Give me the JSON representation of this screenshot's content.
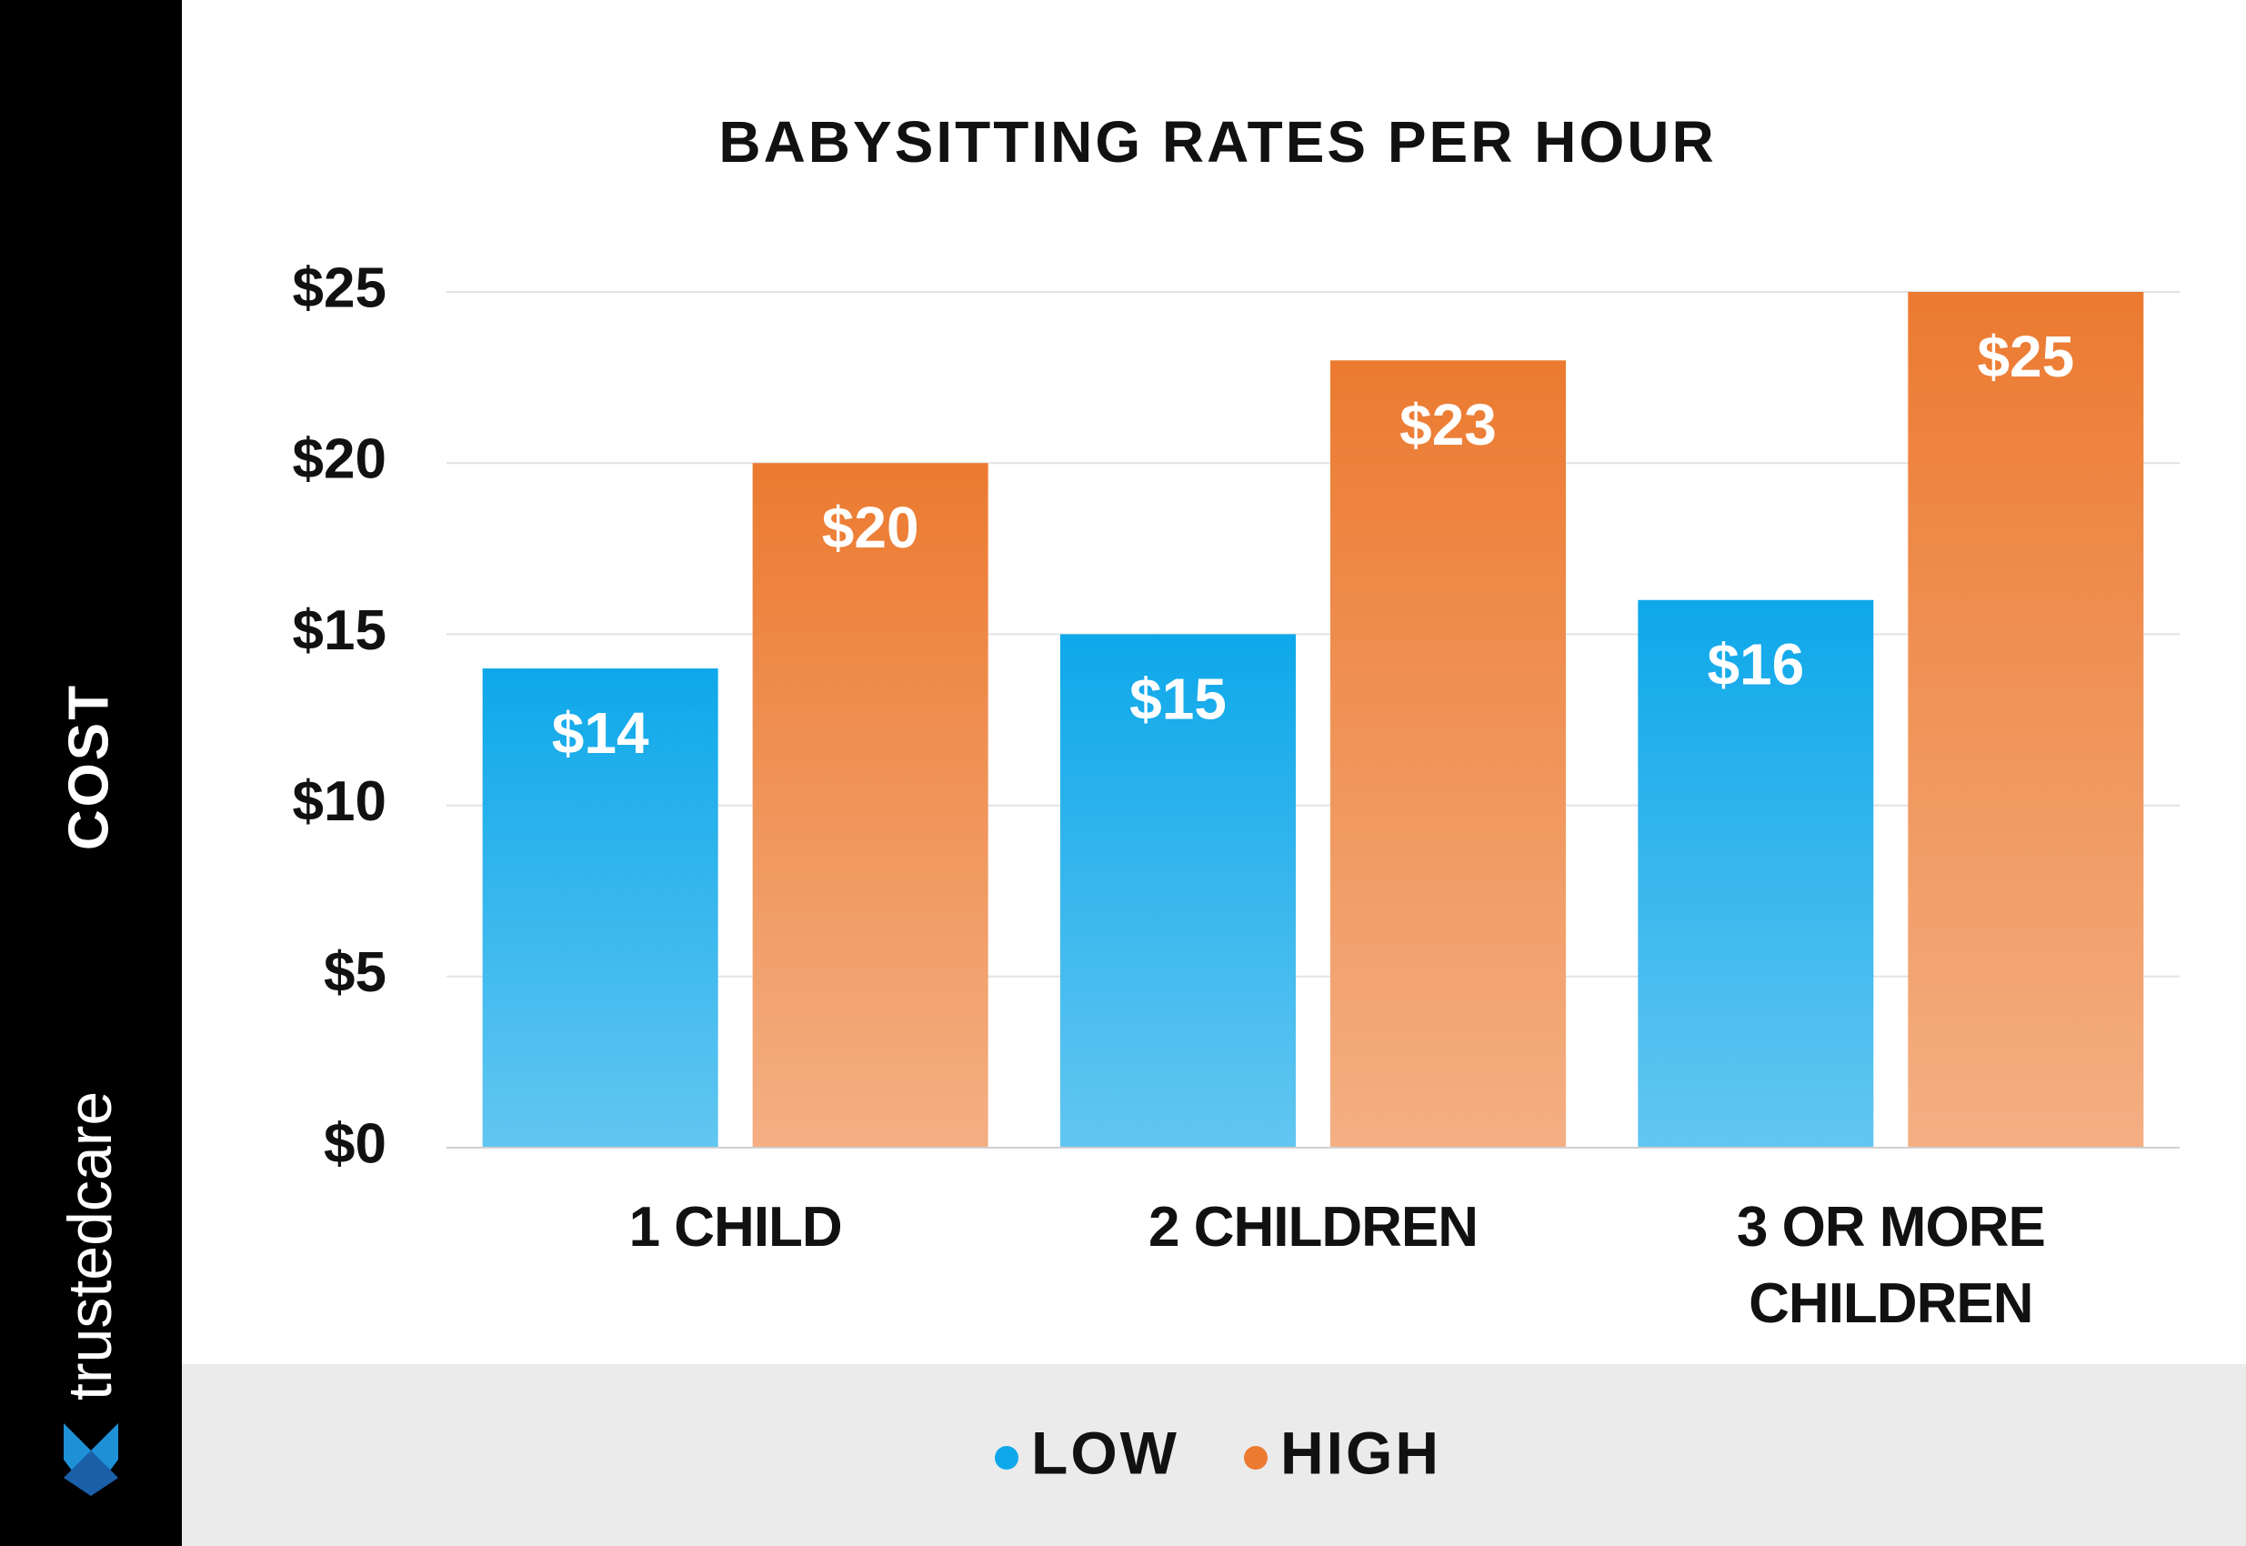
{
  "brand": "trustedcare",
  "chart_data": {
    "type": "bar",
    "title": "BABYSITTING RATES PER HOUR",
    "y_label": "COST",
    "categories": [
      "1 CHILD",
      "2 CHILDREN",
      "3 OR MORE CHILDREN"
    ],
    "series": [
      {
        "name": "LOW",
        "color": "#0ea8ea",
        "values": [
          14,
          15,
          16
        ],
        "value_labels": [
          "$14",
          "$15",
          "$16"
        ]
      },
      {
        "name": "HIGH",
        "color": "#ec7a30",
        "values": [
          20,
          23,
          25
        ],
        "value_labels": [
          "$20",
          "$23",
          "$25"
        ]
      }
    ],
    "ylim": [
      0,
      25
    ],
    "yticks": [
      {
        "value": 0,
        "label": "$0"
      },
      {
        "value": 5,
        "label": "$5"
      },
      {
        "value": 10,
        "label": "$10"
      },
      {
        "value": 15,
        "label": "$15"
      },
      {
        "value": 20,
        "label": "$20"
      },
      {
        "value": 25,
        "label": "$25"
      }
    ],
    "grid": true,
    "legend": "bottom"
  }
}
